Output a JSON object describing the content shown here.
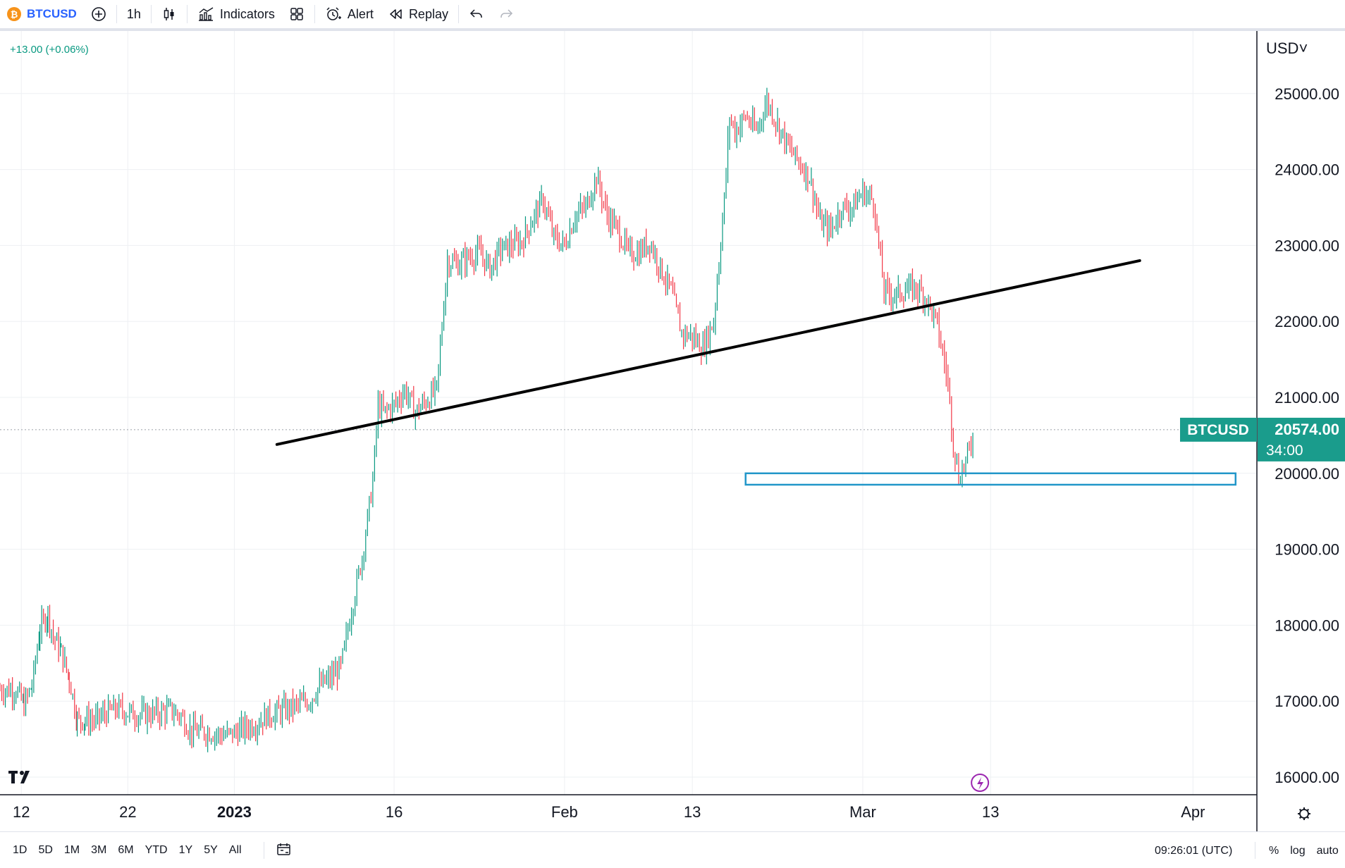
{
  "toolbar": {
    "coin_glyph": "₿",
    "symbol": "BTCUSD",
    "interval": "1h",
    "indicators_label": "Indicators",
    "alert_label": "Alert",
    "replay_label": "Replay",
    "icons": [
      "plus-circle-icon",
      "candles-icon",
      "indicators-icon",
      "layouts-icon",
      "alarm-icon",
      "replay-icon",
      "undo-icon",
      "redo-icon"
    ]
  },
  "header": {
    "change_text": "+13.00 (+0.06%)",
    "currency_label": "USD˅"
  },
  "price_label": {
    "symbol": "BTCUSD",
    "price": "20574.00",
    "countdown": "34:00"
  },
  "bottom": {
    "ranges": [
      "1D",
      "5D",
      "1M",
      "3M",
      "6M",
      "YTD",
      "1Y",
      "5Y",
      "All"
    ],
    "timezone": "09:26:01 (UTC)",
    "percent": "%",
    "log": "log",
    "auto": "auto"
  },
  "colors": {
    "up": "#089981",
    "down": "#f23645",
    "trendline": "#000000",
    "zone": "#2196c9",
    "grid": "#eef0f3",
    "label_bg": "#1a9c8c",
    "accent": "#2962ff"
  },
  "chart_data": {
    "type": "line",
    "title": "",
    "symbol": "BTCUSD",
    "interval": "1h",
    "currency": "USD",
    "ylim": [
      15800,
      25500
    ],
    "y_ticks": [
      "16000.00",
      "17000.00",
      "18000.00",
      "19000.00",
      "20000.00",
      "21000.00",
      "22000.00",
      "23000.00",
      "24000.00",
      "25000.00"
    ],
    "x_ticks": [
      {
        "label": "12",
        "x": "2022-12-12",
        "bold": false
      },
      {
        "label": "22",
        "x": "2022-12-22",
        "bold": false
      },
      {
        "label": "2023",
        "x": "2023-01-01",
        "bold": true
      },
      {
        "label": "16",
        "x": "2023-01-16",
        "bold": false
      },
      {
        "label": "Feb",
        "x": "2023-02-01",
        "bold": false
      },
      {
        "label": "13",
        "x": "2023-02-13",
        "bold": false
      },
      {
        "label": "Mar",
        "x": "2023-03-01",
        "bold": false
      },
      {
        "label": "13",
        "x": "2023-03-13",
        "bold": false
      },
      {
        "label": "Apr",
        "x": "2023-04-01",
        "bold": false
      }
    ],
    "xlim": [
      "2022-12-10 00:00",
      "2023-04-07 00:00"
    ],
    "last_price": 20574.0,
    "grid": true,
    "series": [
      {
        "values": [
          [
            "2022-12-10 00:00",
            17150
          ],
          [
            "2022-12-11 12:00",
            17150
          ],
          [
            "2022-12-12 06:00",
            16950
          ],
          [
            "2022-12-13 00:00",
            17200
          ],
          [
            "2022-12-13 18:00",
            17950
          ],
          [
            "2022-12-14 12:00",
            18150
          ],
          [
            "2022-12-15 00:00",
            17850
          ],
          [
            "2022-12-15 18:00",
            17650
          ],
          [
            "2022-12-16 12:00",
            17300
          ],
          [
            "2022-12-17 06:00",
            16750
          ],
          [
            "2022-12-18 00:00",
            16750
          ],
          [
            "2022-12-19 00:00",
            16750
          ],
          [
            "2022-12-20 00:00",
            16850
          ],
          [
            "2022-12-21 00:00",
            16900
          ],
          [
            "2022-12-22 00:00",
            16850
          ],
          [
            "2022-12-23 00:00",
            16820
          ],
          [
            "2022-12-24 00:00",
            16830
          ],
          [
            "2022-12-25 00:00",
            16850
          ],
          [
            "2022-12-26 00:00",
            16880
          ],
          [
            "2022-12-27 00:00",
            16800
          ],
          [
            "2022-12-28 00:00",
            16600
          ],
          [
            "2022-12-29 00:00",
            16600
          ],
          [
            "2022-12-30 00:00",
            16580
          ],
          [
            "2022-12-31 00:00",
            16550
          ],
          [
            "2023-01-01 00:00",
            16580
          ],
          [
            "2023-01-02 00:00",
            16650
          ],
          [
            "2023-01-03 00:00",
            16700
          ],
          [
            "2023-01-04 00:00",
            16800
          ],
          [
            "2023-01-05 00:00",
            16850
          ],
          [
            "2023-01-06 00:00",
            16900
          ],
          [
            "2023-01-07 00:00",
            16950
          ],
          [
            "2023-01-08 00:00",
            17000
          ],
          [
            "2023-01-09 00:00",
            17200
          ],
          [
            "2023-01-10 00:00",
            17300
          ],
          [
            "2023-01-11 00:00",
            17450
          ],
          [
            "2023-01-12 00:00",
            18200
          ],
          [
            "2023-01-13 00:00",
            18900
          ],
          [
            "2023-01-14 00:00",
            19900
          ],
          [
            "2023-01-14 12:00",
            20900
          ],
          [
            "2023-01-15 00:00",
            20800
          ],
          [
            "2023-01-16 00:00",
            20900
          ],
          [
            "2023-01-17 00:00",
            21100
          ],
          [
            "2023-01-18 00:00",
            20800
          ],
          [
            "2023-01-19 00:00",
            20950
          ],
          [
            "2023-01-20 00:00",
            21100
          ],
          [
            "2023-01-21 00:00",
            22800
          ],
          [
            "2023-01-22 00:00",
            22750
          ],
          [
            "2023-01-23 00:00",
            22850
          ],
          [
            "2023-01-24 00:00",
            22900
          ],
          [
            "2023-01-25 00:00",
            22700
          ],
          [
            "2023-01-26 00:00",
            22950
          ],
          [
            "2023-01-27 00:00",
            23000
          ],
          [
            "2023-01-28 00:00",
            23050
          ],
          [
            "2023-01-29 00:00",
            23350
          ],
          [
            "2023-01-30 00:00",
            23600
          ],
          [
            "2023-01-31 00:00",
            23100
          ],
          [
            "2023-02-01 00:00",
            23000
          ],
          [
            "2023-02-02 00:00",
            23400
          ],
          [
            "2023-02-03 00:00",
            23500
          ],
          [
            "2023-02-04 00:00",
            23900
          ],
          [
            "2023-02-05 00:00",
            23400
          ],
          [
            "2023-02-06 00:00",
            23200
          ],
          [
            "2023-02-07 00:00",
            22900
          ],
          [
            "2023-02-08 00:00",
            22900
          ],
          [
            "2023-02-09 00:00",
            23050
          ],
          [
            "2023-02-10 00:00",
            22700
          ],
          [
            "2023-02-11 00:00",
            22400
          ],
          [
            "2023-02-12 00:00",
            21850
          ],
          [
            "2023-02-13 00:00",
            21800
          ],
          [
            "2023-02-14 00:00",
            21650
          ],
          [
            "2023-02-15 00:00",
            22000
          ],
          [
            "2023-02-16 00:00",
            23600
          ],
          [
            "2023-02-16 12:00",
            24700
          ],
          [
            "2023-02-17 00:00",
            24500
          ],
          [
            "2023-02-18 00:00",
            24700
          ],
          [
            "2023-02-19 00:00",
            24500
          ],
          [
            "2023-02-20 00:00",
            24900
          ],
          [
            "2023-02-21 00:00",
            24600
          ],
          [
            "2023-02-22 00:00",
            24300
          ],
          [
            "2023-02-23 00:00",
            24100
          ],
          [
            "2023-02-24 00:00",
            23900
          ],
          [
            "2023-02-25 00:00",
            23300
          ],
          [
            "2023-02-26 00:00",
            23200
          ],
          [
            "2023-02-27 00:00",
            23500
          ],
          [
            "2023-02-28 00:00",
            23500
          ],
          [
            "2023-03-01 00:00",
            23700
          ],
          [
            "2023-03-02 00:00",
            23600
          ],
          [
            "2023-03-03 00:00",
            22400
          ],
          [
            "2023-03-04 00:00",
            22350
          ],
          [
            "2023-03-05 00:00",
            22400
          ],
          [
            "2023-03-06 00:00",
            22450
          ],
          [
            "2023-03-07 00:00",
            22300
          ],
          [
            "2023-03-08 00:00",
            21950
          ],
          [
            "2023-03-09 00:00",
            21200
          ],
          [
            "2023-03-09 12:00",
            20400
          ],
          [
            "2023-03-10 00:00",
            19950
          ],
          [
            "2023-03-10 12:00",
            20100
          ],
          [
            "2023-03-11 00:00",
            20300
          ],
          [
            "2023-03-11 12:00",
            20580
          ]
        ]
      }
    ],
    "annotations": [
      {
        "type": "trendline",
        "from": [
          "2023-01-05 00:00",
          20380
        ],
        "to": [
          "2023-03-27 00:00",
          22800
        ]
      },
      {
        "type": "rectangle",
        "from": [
          "2023-02-18 00:00",
          19850
        ],
        "to": [
          "2023-04-05 00:00",
          20000
        ]
      }
    ]
  }
}
